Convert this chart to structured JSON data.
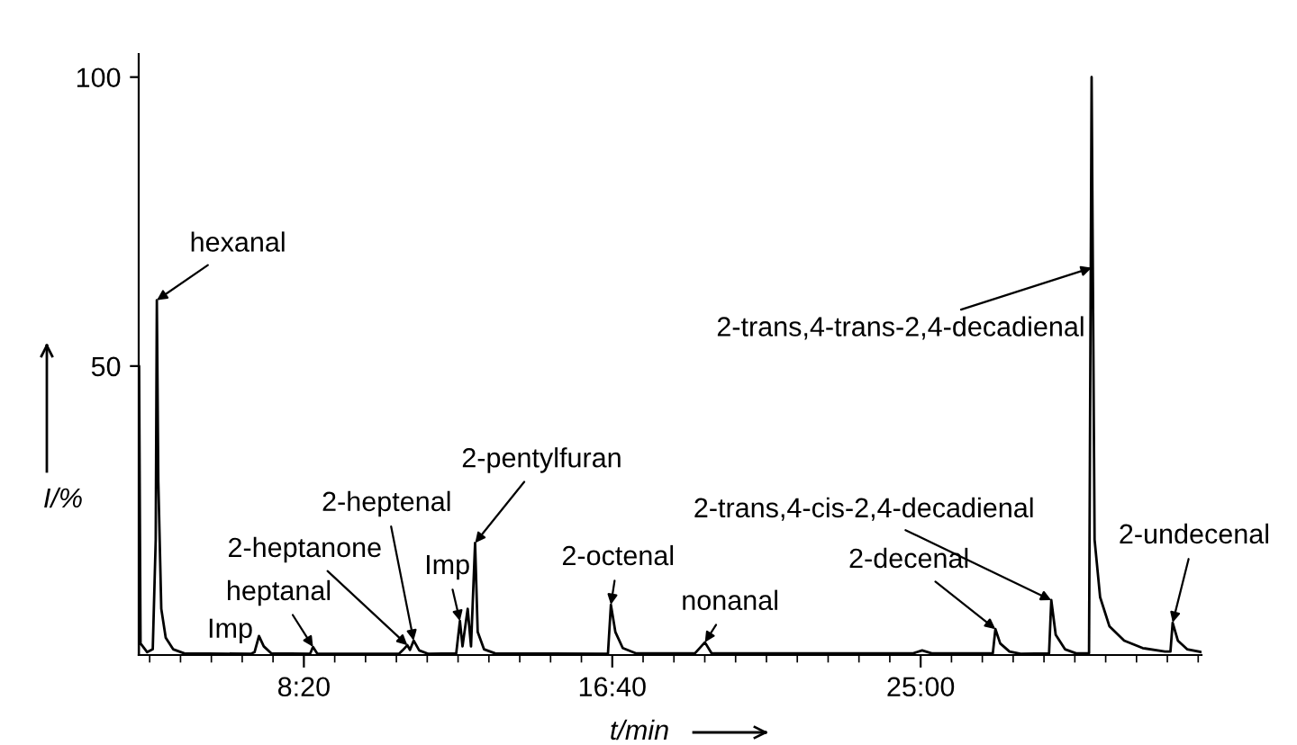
{
  "chart_data": {
    "type": "line",
    "xlabel": "t/min",
    "ylabel": "I/%",
    "xlim": [
      3.87,
      32.59
    ],
    "ylim": [
      0,
      104
    ],
    "yticks": [
      50,
      100
    ],
    "xticks": [
      {
        "value": 4.1667,
        "label": null
      },
      {
        "value": 5.0,
        "label": null
      },
      {
        "value": 5.8333,
        "label": null
      },
      {
        "value": 6.6667,
        "label": null
      },
      {
        "value": 7.5,
        "label": null
      },
      {
        "value": 8.3333,
        "label": "8:20"
      },
      {
        "value": 9.1667,
        "label": null
      },
      {
        "value": 10.0,
        "label": null
      },
      {
        "value": 10.8333,
        "label": null
      },
      {
        "value": 11.6667,
        "label": null
      },
      {
        "value": 12.5,
        "label": null
      },
      {
        "value": 13.3333,
        "label": null
      },
      {
        "value": 14.1667,
        "label": null
      },
      {
        "value": 15.0,
        "label": null
      },
      {
        "value": 15.8333,
        "label": null
      },
      {
        "value": 16.6667,
        "label": "16:40"
      },
      {
        "value": 17.5,
        "label": null
      },
      {
        "value": 18.3333,
        "label": null
      },
      {
        "value": 19.1667,
        "label": null
      },
      {
        "value": 20.0,
        "label": null
      },
      {
        "value": 20.8333,
        "label": null
      },
      {
        "value": 21.6667,
        "label": null
      },
      {
        "value": 22.5,
        "label": null
      },
      {
        "value": 23.3333,
        "label": null
      },
      {
        "value": 24.1667,
        "label": null
      },
      {
        "value": 25.0,
        "label": "25:00"
      },
      {
        "value": 25.8333,
        "label": null
      },
      {
        "value": 26.6667,
        "label": null
      },
      {
        "value": 27.5,
        "label": null
      },
      {
        "value": 28.3333,
        "label": null
      },
      {
        "value": 29.1667,
        "label": null
      },
      {
        "value": 30.0,
        "label": null
      },
      {
        "value": 30.8333,
        "label": null
      },
      {
        "value": 31.6667,
        "label": null
      },
      {
        "value": 32.5,
        "label": null
      }
    ],
    "series": [
      {
        "color": "#000000",
        "x": [
          3.87,
          3.88,
          3.92,
          4.1,
          4.25,
          4.33,
          4.36,
          4.4,
          4.48,
          4.6,
          4.8,
          5.1,
          6.9,
          7.0,
          7.12,
          7.25,
          7.45,
          8.5,
          8.58,
          8.7,
          10.9,
          11.0,
          11.13,
          11.2,
          11.3,
          11.45,
          11.7,
          12.45,
          12.55,
          12.62,
          12.76,
          12.85,
          12.96,
          13.03,
          13.2,
          13.5,
          16.55,
          16.63,
          16.75,
          16.95,
          17.3,
          18.9,
          19.17,
          19.35,
          24.8,
          25.04,
          25.3,
          26.95,
          27.02,
          27.15,
          27.4,
          27.7,
          28.47,
          28.53,
          28.65,
          28.9,
          29.2,
          29.55,
          29.62,
          29.7,
          29.85,
          30.1,
          30.5,
          31.0,
          31.6,
          31.75,
          31.81,
          31.95,
          32.2,
          32.59
        ],
        "values": [
          0,
          50,
          2,
          0.5,
          1,
          20,
          61.4,
          30,
          8,
          3,
          1,
          0.3,
          0.2,
          0.5,
          3.3,
          1.5,
          0.3,
          0.2,
          1.4,
          0.2,
          0.2,
          0.8,
          1.7,
          0.9,
          2.5,
          0.8,
          0.2,
          0.3,
          5.9,
          1.5,
          8.0,
          1.5,
          19.4,
          4,
          1,
          0.3,
          0.2,
          8.7,
          4,
          1.2,
          0.3,
          0.3,
          2.2,
          0.3,
          0.3,
          0.8,
          0.3,
          0.3,
          4.5,
          2,
          0.6,
          0.2,
          0.3,
          9.5,
          3.5,
          1,
          0.3,
          0.3,
          100,
          20,
          10,
          5,
          2.5,
          1.2,
          0.6,
          0.6,
          5.6,
          2.5,
          1,
          0.5
        ]
      }
    ],
    "annotations": [
      {
        "text": "hexanal",
        "x": 4.36,
        "y": 61.4
      },
      {
        "text": "Imp",
        "x": 7.12,
        "y": 3.3
      },
      {
        "text": "heptanal",
        "x": 8.58,
        "y": 1.4
      },
      {
        "text": "2-heptanone",
        "x": 11.13,
        "y": 1.7
      },
      {
        "text": "2-heptenal",
        "x": 11.3,
        "y": 2.5
      },
      {
        "text": "Imp",
        "x": 12.55,
        "y": 5.9
      },
      {
        "text": "2-pentylfuran",
        "x": 12.96,
        "y": 19.4
      },
      {
        "text": "2-octenal",
        "x": 16.63,
        "y": 8.7
      },
      {
        "text": "nonanal",
        "x": 19.17,
        "y": 2.2
      },
      {
        "text": "2-decenal",
        "x": 27.02,
        "y": 4.5
      },
      {
        "text": "2-trans,4-cis-2,4-decadienal",
        "x": 28.53,
        "y": 9.5
      },
      {
        "text": "2-trans,4-trans-2,4-decadienal",
        "x": 29.62,
        "y": 67
      },
      {
        "text": "2-undecenal",
        "x": 31.81,
        "y": 5.6
      }
    ]
  }
}
